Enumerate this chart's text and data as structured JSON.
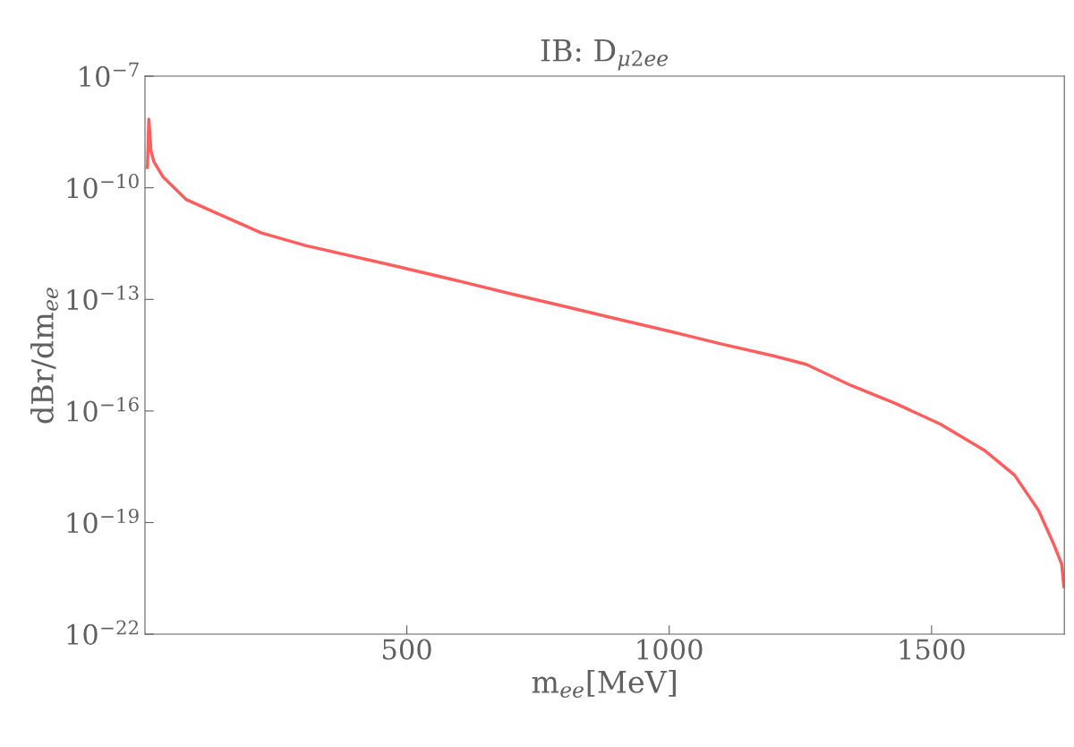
{
  "chart_data": {
    "type": "line",
    "title": "IB: D$_{μ2ee}$",
    "xlabel": "m$_{ee}$[MeV]",
    "ylabel": "dBr/dm$_{ee}$",
    "log": "y",
    "grid": false,
    "xlim": [
      1,
      1753
    ],
    "xticks": [
      500,
      1000,
      1500
    ],
    "ylim": [
      1e-22,
      1e-07
    ],
    "yticks": [
      {
        "value": 1e-22,
        "label": "10$^{−22}$"
      },
      {
        "value": 1e-19,
        "label": "10$^{−19}$"
      },
      {
        "value": 1e-16,
        "label": "10$^{−16}$"
      },
      {
        "value": 1e-13,
        "label": "10$^{−13}$"
      },
      {
        "value": 1e-10,
        "label": "10$^{−10}$"
      },
      {
        "value": 1e-07,
        "label": "10$^{−7}$"
      }
    ],
    "series": [
      {
        "color": "#ff5e5e",
        "x": [
          5.6,
          8.3,
          12.4,
          18,
          35,
          80,
          137,
          222,
          307,
          478,
          600,
          700,
          800,
          900,
          1000,
          1100,
          1200,
          1261,
          1346,
          1431,
          1516,
          1602,
          1658,
          1704,
          1732,
          1748,
          1752
        ],
        "values": [
          3.5e-10,
          7e-09,
          1e-09,
          5e-10,
          2e-10,
          4.8e-11,
          2.1e-11,
          6.2e-12,
          2.8e-12,
          7.9e-13,
          3.1e-13,
          1.4e-13,
          6.5e-14,
          3e-14,
          1.4e-14,
          6.3e-15,
          3e-15,
          1.8e-15,
          4.9e-16,
          1.6e-16,
          4.5e-17,
          8.5e-18,
          1.9e-18,
          2.1e-19,
          2.8e-20,
          7.6e-21,
          1.9e-21
        ]
      }
    ]
  }
}
